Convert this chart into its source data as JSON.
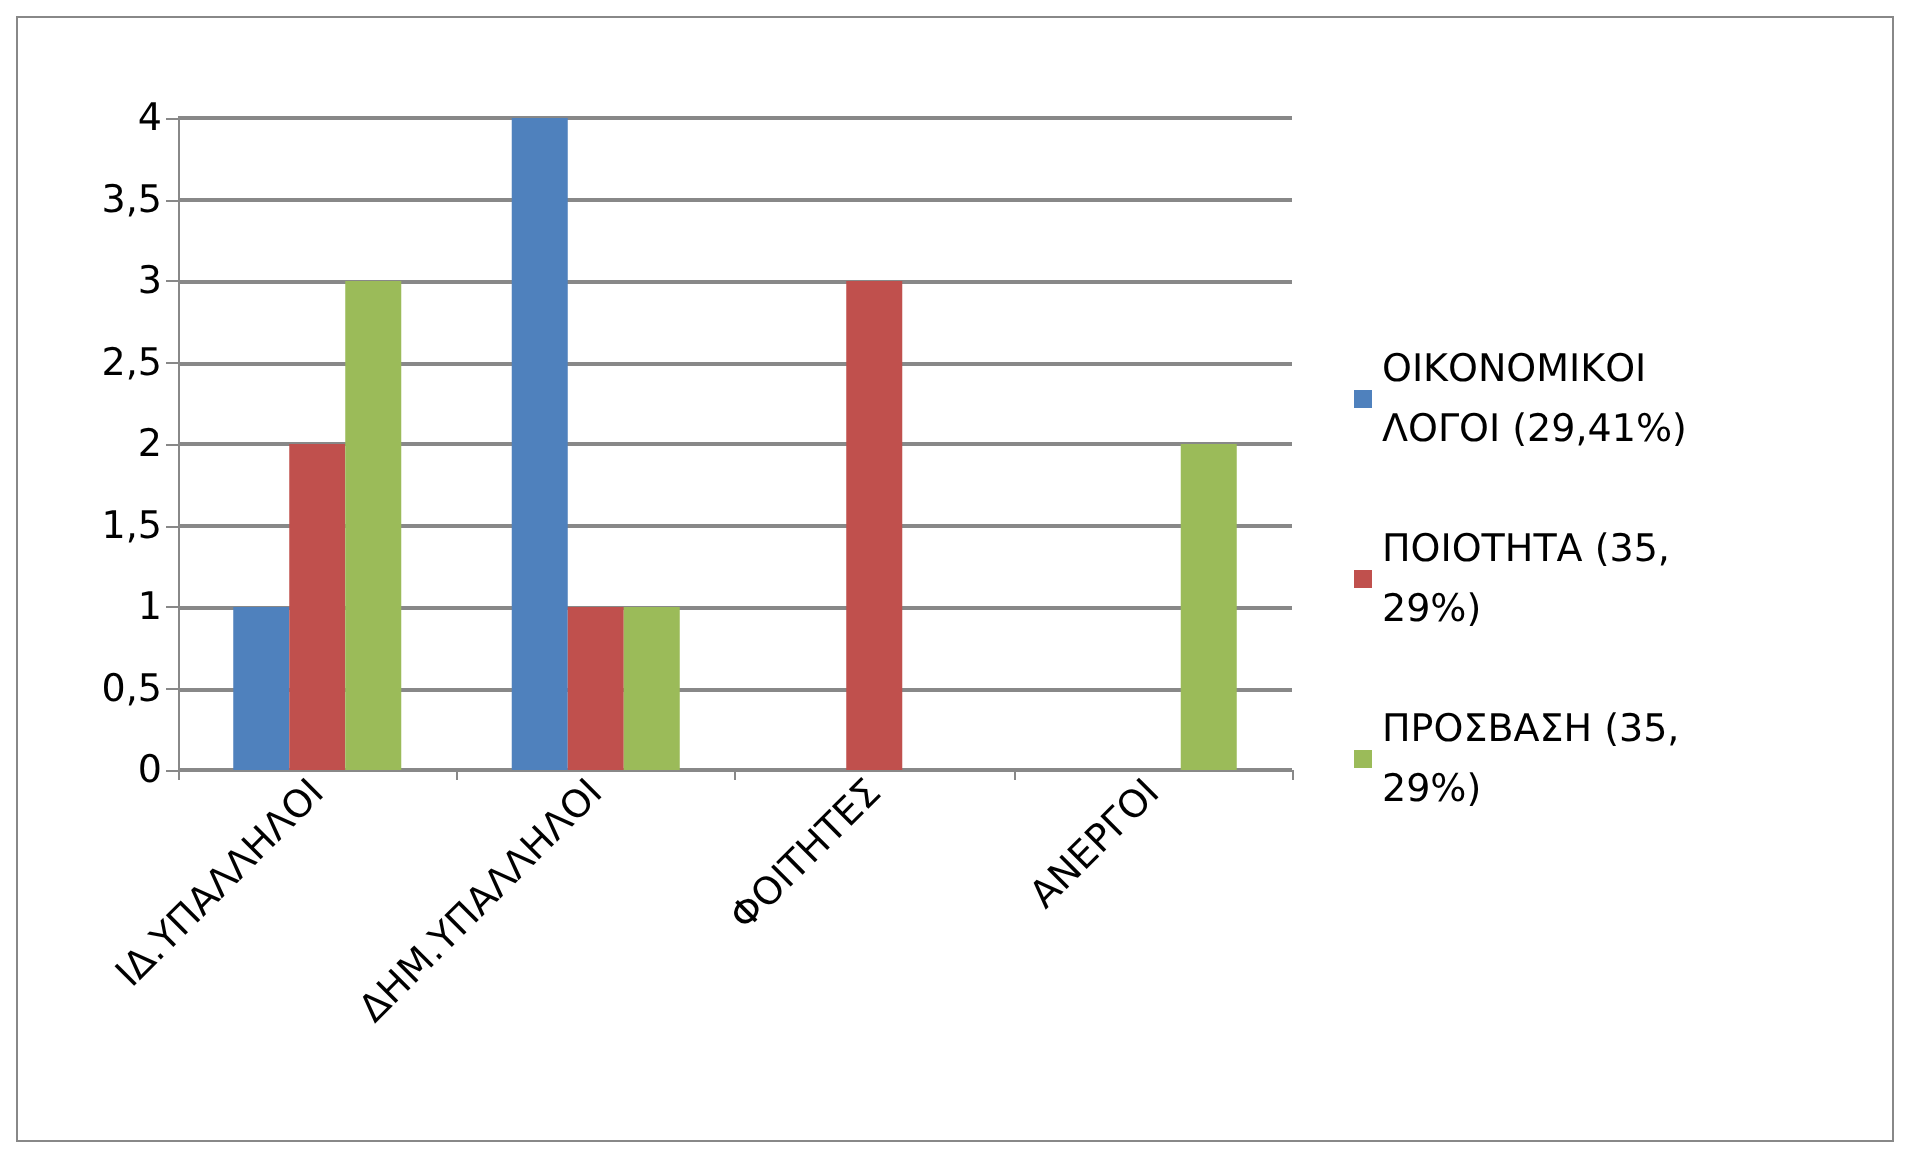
{
  "chart_data": {
    "type": "bar",
    "categories": [
      "ΙΔ.ΥΠΑΛΛΗΛΟΙ",
      "ΔΗΜ.ΥΠΑΛΛΗΛΟΙ",
      "ΦΟΙΤΗΤΕΣ",
      "ΑΝΕΡΓΟΙ"
    ],
    "series": [
      {
        "name": "ΟΙΚΟΝΟΜΙΚΟΙ ΛΟΓΟΙ (29,41%)",
        "color": "#4f81bd",
        "values": [
          1,
          4,
          0,
          0
        ]
      },
      {
        "name": "ΠΟΙΟΤΗΤΑ (35,29%)",
        "color": "#c0504d",
        "values": [
          2,
          1,
          3,
          0
        ]
      },
      {
        "name": "ΠΡΟΣΒΑΣΗ (35,29%)",
        "color": "#9bbb59",
        "values": [
          3,
          1,
          0,
          2
        ]
      }
    ],
    "ylim": [
      0,
      4
    ],
    "yticks": [
      0,
      {
        "value": 0.5,
        "label": "0,5"
      },
      1,
      {
        "value": 1.5,
        "label": "1,5"
      },
      2,
      {
        "value": 2.5,
        "label": "2,5"
      },
      3,
      {
        "value": 3.5,
        "label": "3,5"
      },
      4
    ],
    "grid": "y",
    "legend": "right"
  }
}
